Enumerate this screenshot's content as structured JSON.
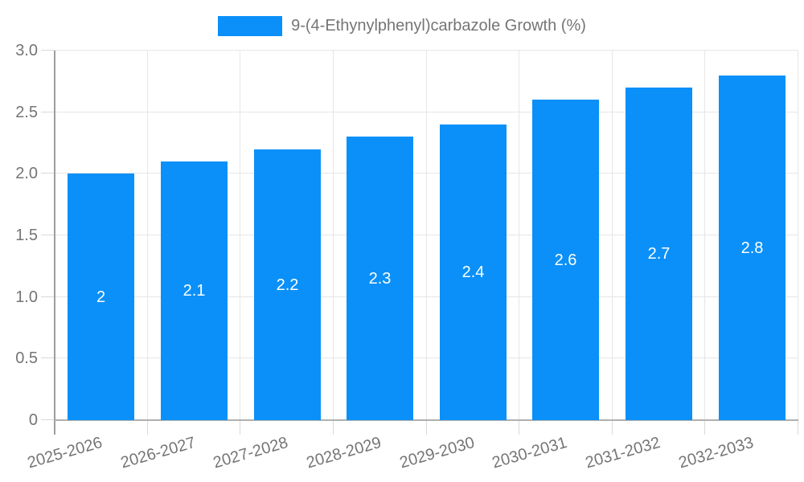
{
  "legend": {
    "label": "9-(4-Ethynylphenyl)carbazole Growth (%)"
  },
  "chart_data": {
    "type": "bar",
    "title": "",
    "xlabel": "",
    "ylabel": "",
    "legend_entries": [
      "9-(4-Ethynylphenyl)carbazole Growth (%)"
    ],
    "legend_position": "top",
    "categories": [
      "2025-2026",
      "2026-2027",
      "2027-2028",
      "2028-2029",
      "2029-2030",
      "2030-2031",
      "2031-2032",
      "2032-2033"
    ],
    "values": [
      2,
      2.1,
      2.2,
      2.3,
      2.4,
      2.6,
      2.7,
      2.8
    ],
    "bar_value_labels": [
      "2",
      "2.1",
      "2.2",
      "2.3",
      "2.4",
      "2.6",
      "2.7",
      "2.8"
    ],
    "ylim": [
      0,
      3
    ],
    "y_tick_values": [
      0,
      0.5,
      1,
      1.5,
      2,
      2.5,
      3
    ],
    "y_tick_labels": [
      "0",
      "0.5",
      "1.0",
      "1.5",
      "2.0",
      "2.5",
      "3.0"
    ],
    "grid": true,
    "colors": {
      "bar": "#0a90f8",
      "grid": "#e6e6e6",
      "axis_y": "#9e9e9e",
      "axis_x": "#b0b0b0",
      "tick": "#d9d9d9",
      "axis_text": "#757575",
      "bar_label_text": "#ffffff"
    }
  }
}
